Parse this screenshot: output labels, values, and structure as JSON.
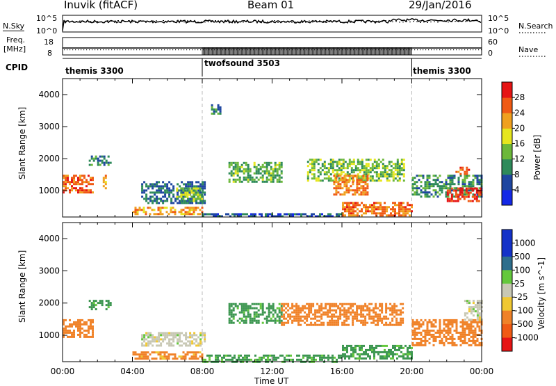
{
  "header": {
    "station": "Inuvik (fitACF)",
    "beam": "Beam 01",
    "date": "29/Jan/2016"
  },
  "noise_panel": {
    "left_label": "N.Sky",
    "right_label": "N.Search",
    "left_ticks": [
      "10^5",
      "10^0"
    ],
    "right_ticks": [
      "10^5",
      "10^0"
    ]
  },
  "freq_panel": {
    "left_label_line1": "Freq.",
    "left_label_line2": "[MHz]",
    "right_label": "Nave",
    "left_ticks": [
      "18",
      "8"
    ],
    "right_ticks": [
      "60",
      "0"
    ]
  },
  "cpid_panel": {
    "label": "CPID",
    "segments": [
      {
        "name": "themis 3300",
        "start_hour": 0,
        "end_hour": 8
      },
      {
        "name": "twofsound 3503",
        "start_hour": 8,
        "end_hour": 20
      },
      {
        "name": "themis 3300",
        "start_hour": 20,
        "end_hour": 24
      }
    ]
  },
  "chart_data": [
    {
      "type": "heatmap",
      "title": "",
      "xlabel": "",
      "ylabel": "Slant Range [km]",
      "xlim": [
        0,
        24
      ],
      "ylim": [
        180,
        4500
      ],
      "yticks": [
        1000,
        2000,
        3000,
        4000
      ],
      "ytick_labels": [
        "1000",
        "2000",
        "3000",
        "4000"
      ],
      "colorbar": {
        "label": "Power [dB]",
        "ticks": [
          "4",
          "8",
          "12",
          "16",
          "20",
          "24",
          "28"
        ],
        "range": [
          0,
          30
        ]
      },
      "regions": [
        {
          "x": [
            0.0,
            1.7
          ],
          "y": [
            950,
            1500
          ],
          "value": 26
        },
        {
          "x": [
            1.5,
            2.7
          ],
          "y": [
            1800,
            2100
          ],
          "value": 12
        },
        {
          "x": [
            2.3,
            2.5
          ],
          "y": [
            1000,
            1500
          ],
          "value": 22
        },
        {
          "x": [
            4.0,
            8.0
          ],
          "y": [
            300,
            500
          ],
          "value": 22
        },
        {
          "x": [
            4.5,
            8.2
          ],
          "y": [
            600,
            1300
          ],
          "value": 10
        },
        {
          "x": [
            6.5,
            8.0
          ],
          "y": [
            700,
            1100
          ],
          "value": 16
        },
        {
          "x": [
            8.5,
            9.0
          ],
          "y": [
            3400,
            3700
          ],
          "value": 12
        },
        {
          "x": [
            8.0,
            16.0
          ],
          "y": [
            180,
            300
          ],
          "value": 8
        },
        {
          "x": [
            9.5,
            12.5
          ],
          "y": [
            1300,
            1900
          ],
          "value": 14
        },
        {
          "x": [
            14.0,
            19.5
          ],
          "y": [
            1300,
            2000
          ],
          "value": 16
        },
        {
          "x": [
            15.5,
            17.5
          ],
          "y": [
            900,
            1500
          ],
          "value": 24
        },
        {
          "x": [
            16.0,
            20.0
          ],
          "y": [
            250,
            650
          ],
          "value": 25
        },
        {
          "x": [
            20.0,
            24.0
          ],
          "y": [
            800,
            1500
          ],
          "value": 12
        },
        {
          "x": [
            22.0,
            24.0
          ],
          "y": [
            700,
            1100
          ],
          "value": 28
        },
        {
          "x": [
            22.5,
            23.3
          ],
          "y": [
            1550,
            1750
          ],
          "value": 27
        }
      ]
    },
    {
      "type": "heatmap",
      "title": "",
      "xlabel": "Time UT",
      "ylabel": "Slant Range [km]",
      "xlim": [
        0,
        24
      ],
      "ylim": [
        180,
        4500
      ],
      "yticks": [
        1000,
        2000,
        3000,
        4000
      ],
      "ytick_labels": [
        "1000",
        "2000",
        "3000",
        "4000"
      ],
      "xticks": [
        "00:00",
        "04:00",
        "08:00",
        "12:00",
        "16:00",
        "20:00",
        "00:00"
      ],
      "colorbar": {
        "label": "Velocity [m s^-1]",
        "ticks": [
          "1000",
          "500",
          "100",
          "25",
          "-25",
          "-100",
          "-500",
          "-1000"
        ]
      },
      "regions": [
        {
          "x": [
            0.0,
            1.7
          ],
          "y": [
            950,
            1500
          ],
          "value": -200
        },
        {
          "x": [
            1.5,
            2.7
          ],
          "y": [
            1800,
            2100
          ],
          "value": 150
        },
        {
          "x": [
            4.0,
            8.0
          ],
          "y": [
            300,
            500
          ],
          "value": -150
        },
        {
          "x": [
            4.5,
            8.2
          ],
          "y": [
            700,
            1100
          ],
          "value": 0
        },
        {
          "x": [
            8.0,
            16.0
          ],
          "y": [
            180,
            400
          ],
          "value": 150
        },
        {
          "x": [
            9.5,
            12.5
          ],
          "y": [
            1400,
            2000
          ],
          "value": 150
        },
        {
          "x": [
            12.5,
            19.5
          ],
          "y": [
            1300,
            2000
          ],
          "value": -200
        },
        {
          "x": [
            16.0,
            20.0
          ],
          "y": [
            300,
            700
          ],
          "value": 150
        },
        {
          "x": [
            20.0,
            24.0
          ],
          "y": [
            700,
            1500
          ],
          "value": -200
        },
        {
          "x": [
            23.0,
            24.0
          ],
          "y": [
            1500,
            2100
          ],
          "value": 0
        }
      ]
    }
  ]
}
